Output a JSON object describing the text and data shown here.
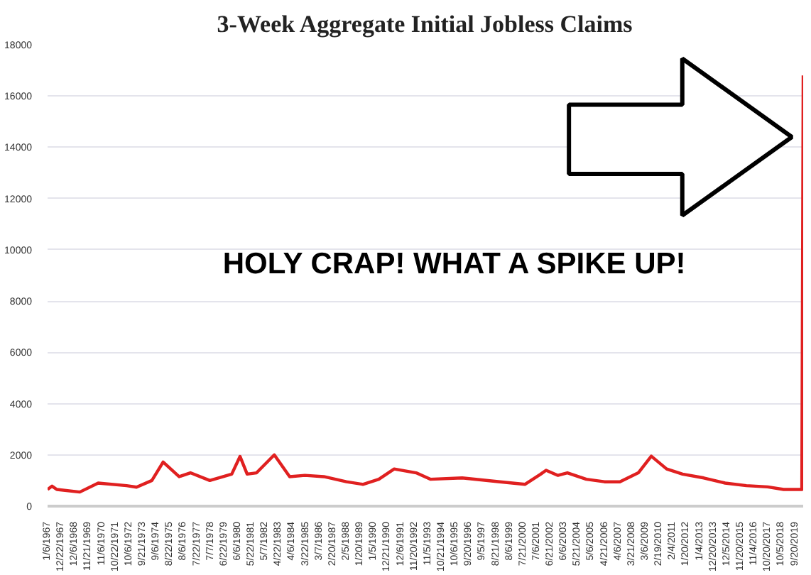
{
  "chart_data": {
    "type": "line",
    "title": "3-Week Aggregate Initial Jobless Claims",
    "annotations": [
      "HOLY CRAP! WHAT A SPIKE UP!"
    ],
    "x": [
      "1967-01-06",
      "1967-05-01",
      "1967-09-01",
      "1969-04-15",
      "1970-08-01",
      "1972-08-01",
      "1973-04-15",
      "1974-05-15",
      "1975-03-01",
      "1976-04-15",
      "1977-02-01",
      "1978-06-15",
      "1980-01-01",
      "1980-08-01",
      "1981-02-01",
      "1981-10-01",
      "1983-01-01",
      "1984-02-01",
      "1985-03-01",
      "1986-07-01",
      "1988-02-01",
      "1989-04-01",
      "1990-05-15",
      "1991-06-15",
      "1993-01-01",
      "1994-01-01",
      "1996-04-01",
      "1998-12-01",
      "2000-09-01",
      "2001-10-15",
      "2002-03-01",
      "2003-01-01",
      "2003-09-01",
      "2005-01-01",
      "2006-04-15",
      "2007-05-15",
      "2008-09-01",
      "2009-08-01",
      "2010-09-01",
      "2011-10-15",
      "2013-04-15",
      "2014-10-15",
      "2016-04-15",
      "2017-10-15",
      "2018-12-01",
      "2020-03-13",
      "2020-04-17"
    ],
    "values": [
      650,
      780,
      650,
      550,
      900,
      800,
      740,
      1000,
      1720,
      1150,
      1300,
      1000,
      1250,
      1940,
      1250,
      1300,
      2000,
      1150,
      1200,
      1150,
      950,
      850,
      1050,
      1450,
      1300,
      1050,
      1100,
      950,
      850,
      1250,
      1400,
      1200,
      1300,
      1050,
      950,
      950,
      1300,
      1950,
      1450,
      1250,
      1100,
      900,
      800,
      750,
      650,
      650,
      16800
    ],
    "color": "#e02020",
    "xlim": [
      "1967-01-06",
      "2020-04-17"
    ],
    "xticks": [
      {
        "value": "1967-01-06",
        "label": "1/6/1967"
      },
      {
        "value": "1967-12-22",
        "label": "12/22/1967"
      },
      {
        "value": "1968-12-06",
        "label": "12/6/1968"
      },
      {
        "value": "1969-11-21",
        "label": "11/21/1969"
      },
      {
        "value": "1970-11-06",
        "label": "11/6/1970"
      },
      {
        "value": "1971-10-22",
        "label": "10/22/1971"
      },
      {
        "value": "1972-10-06",
        "label": "10/6/1972"
      },
      {
        "value": "1973-09-21",
        "label": "9/21/1973"
      },
      {
        "value": "1974-09-06",
        "label": "9/6/1974"
      },
      {
        "value": "1975-08-22",
        "label": "8/22/1975"
      },
      {
        "value": "1976-08-06",
        "label": "8/6/1976"
      },
      {
        "value": "1977-07-22",
        "label": "7/22/1977"
      },
      {
        "value": "1978-07-07",
        "label": "7/7/1978"
      },
      {
        "value": "1979-06-22",
        "label": "6/22/1979"
      },
      {
        "value": "1980-06-06",
        "label": "6/6/1980"
      },
      {
        "value": "1981-05-22",
        "label": "5/22/1981"
      },
      {
        "value": "1982-05-07",
        "label": "5/7/1982"
      },
      {
        "value": "1983-04-22",
        "label": "4/22/1983"
      },
      {
        "value": "1984-04-06",
        "label": "4/6/1984"
      },
      {
        "value": "1985-03-22",
        "label": "3/22/1985"
      },
      {
        "value": "1986-03-07",
        "label": "3/7/1986"
      },
      {
        "value": "1987-02-20",
        "label": "2/20/1987"
      },
      {
        "value": "1988-02-05",
        "label": "2/5/1988"
      },
      {
        "value": "1989-01-20",
        "label": "1/20/1989"
      },
      {
        "value": "1990-01-05",
        "label": "1/5/1990"
      },
      {
        "value": "1990-12-21",
        "label": "12/21/1990"
      },
      {
        "value": "1991-12-06",
        "label": "12/6/1991"
      },
      {
        "value": "1992-11-20",
        "label": "11/20/1992"
      },
      {
        "value": "1993-11-05",
        "label": "11/5/1993"
      },
      {
        "value": "1994-10-21",
        "label": "10/21/1994"
      },
      {
        "value": "1995-10-06",
        "label": "10/6/1995"
      },
      {
        "value": "1996-09-20",
        "label": "9/20/1996"
      },
      {
        "value": "1997-09-05",
        "label": "9/5/1997"
      },
      {
        "value": "1998-08-21",
        "label": "8/21/1998"
      },
      {
        "value": "1999-08-06",
        "label": "8/6/1999"
      },
      {
        "value": "2000-07-21",
        "label": "7/21/2000"
      },
      {
        "value": "2001-07-06",
        "label": "7/6/2001"
      },
      {
        "value": "2002-06-21",
        "label": "6/21/2002"
      },
      {
        "value": "2003-06-06",
        "label": "6/6/2003"
      },
      {
        "value": "2004-05-21",
        "label": "5/21/2004"
      },
      {
        "value": "2005-05-06",
        "label": "5/6/2005"
      },
      {
        "value": "2006-04-21",
        "label": "4/21/2006"
      },
      {
        "value": "2007-04-06",
        "label": "4/6/2007"
      },
      {
        "value": "2008-03-21",
        "label": "3/21/2008"
      },
      {
        "value": "2009-03-06",
        "label": "3/6/2009"
      },
      {
        "value": "2010-02-19",
        "label": "2/19/2010"
      },
      {
        "value": "2011-02-04",
        "label": "2/4/2011"
      },
      {
        "value": "2012-01-20",
        "label": "1/20/2012"
      },
      {
        "value": "2013-01-04",
        "label": "1/4/2013"
      },
      {
        "value": "2013-12-20",
        "label": "12/20/2013"
      },
      {
        "value": "2014-12-05",
        "label": "12/5/2014"
      },
      {
        "value": "2015-11-20",
        "label": "11/20/2015"
      },
      {
        "value": "2016-11-04",
        "label": "11/4/2016"
      },
      {
        "value": "2017-10-20",
        "label": "10/20/2017"
      },
      {
        "value": "2018-10-05",
        "label": "10/5/2018"
      },
      {
        "value": "2019-09-20",
        "label": "9/20/2019"
      }
    ],
    "ylim": [
      0,
      18000
    ],
    "yticks": [
      0,
      2000,
      4000,
      6000,
      8000,
      10000,
      12000,
      14000,
      16000,
      18000
    ],
    "grid": "y",
    "marker": "none",
    "line_style": "solid"
  }
}
